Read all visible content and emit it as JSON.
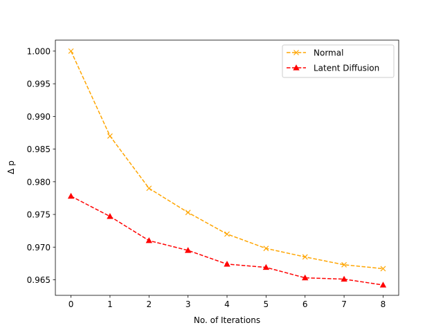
{
  "chart_data": {
    "type": "line",
    "title": "",
    "xlabel": "No. of Iterations",
    "ylabel": "Δ p",
    "x": [
      0,
      1,
      2,
      3,
      4,
      5,
      6,
      7,
      8
    ],
    "xlim": [
      -0.4,
      8.4
    ],
    "ylim": [
      0.96262,
      1.00168
    ],
    "x_ticks": [
      0,
      1,
      2,
      3,
      4,
      5,
      6,
      7,
      8
    ],
    "y_ticks": [
      0.965,
      0.97,
      0.975,
      0.98,
      0.985,
      0.99,
      0.995,
      1.0
    ],
    "grid": false,
    "legend_position": "top-right",
    "series": [
      {
        "name": "Normal",
        "color": "#ffa500",
        "marker": "x",
        "linestyle": "dashed",
        "values": [
          1.0,
          0.987,
          0.979,
          0.9753,
          0.972,
          0.9698,
          0.9685,
          0.9673,
          0.9667
        ]
      },
      {
        "name": "Latent Diffusion",
        "color": "#ff0000",
        "marker": "triangle",
        "linestyle": "dashed",
        "values": [
          0.9778,
          0.9747,
          0.971,
          0.9695,
          0.9674,
          0.9669,
          0.9653,
          0.9651,
          0.9642
        ]
      }
    ]
  }
}
